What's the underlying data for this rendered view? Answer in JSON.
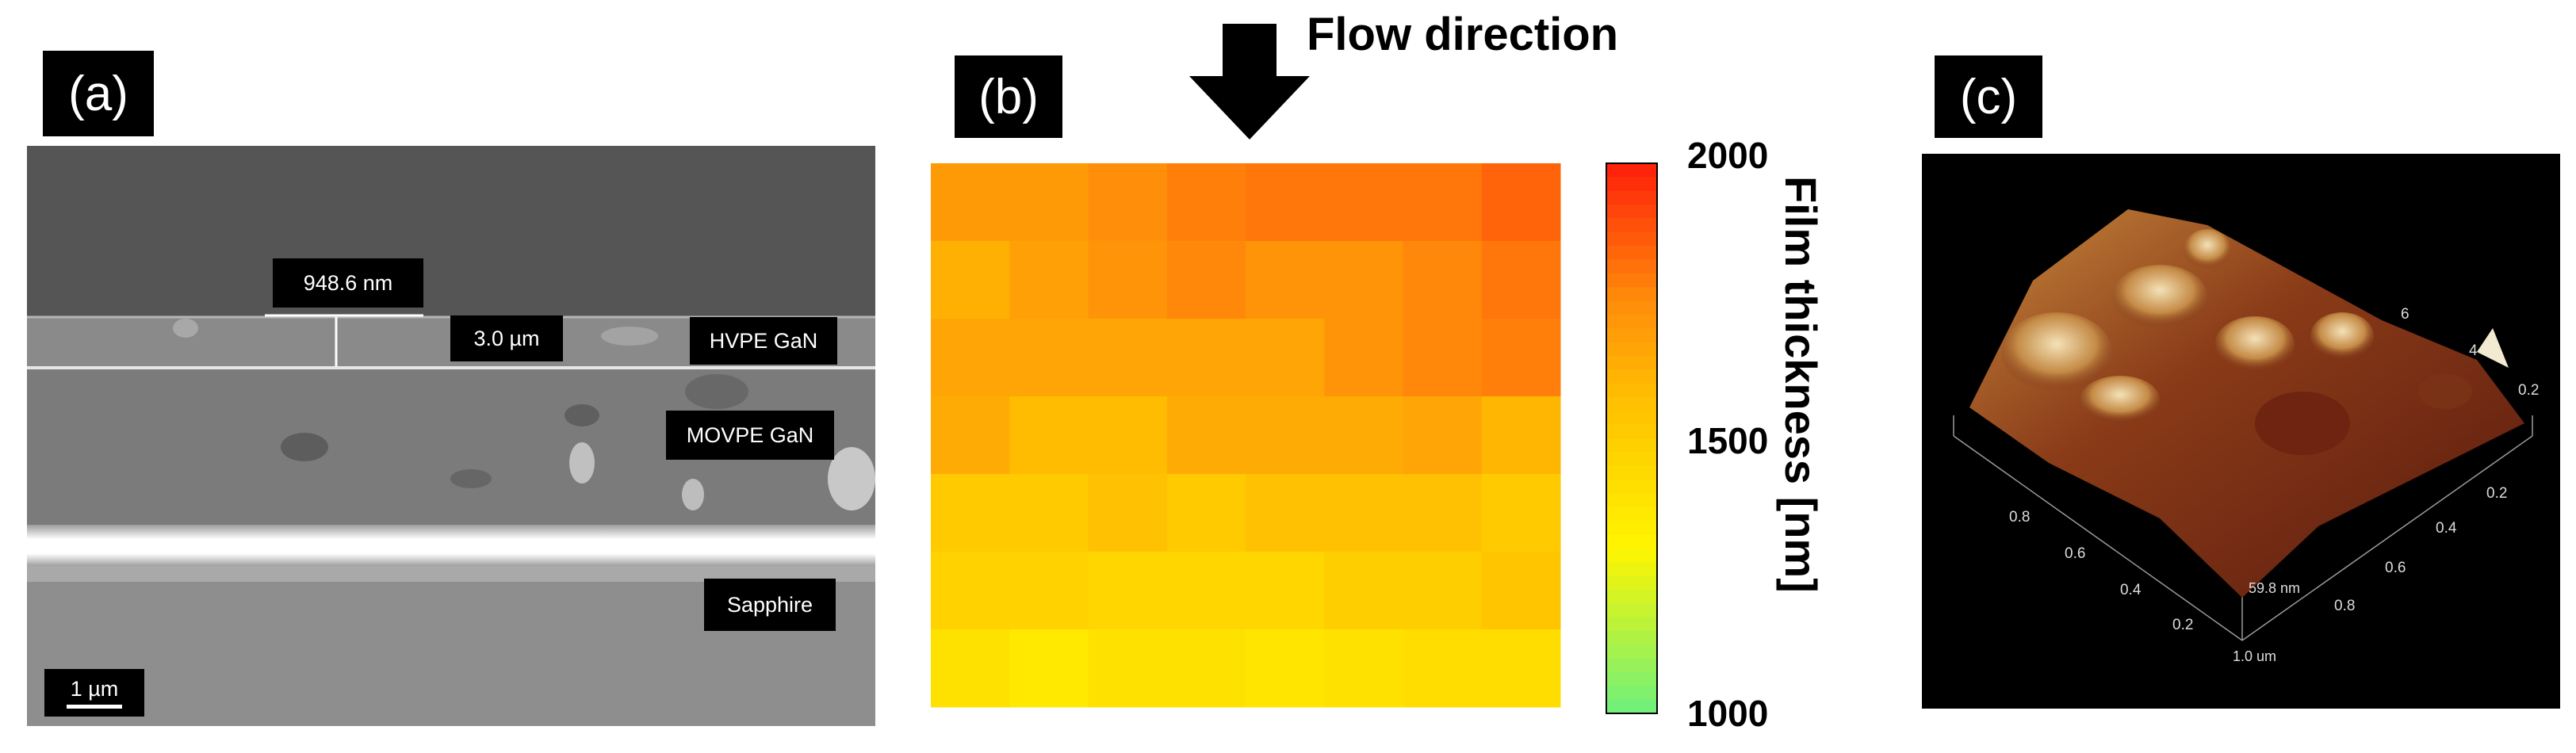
{
  "panels": {
    "a_label": "(a)",
    "b_label": "(b)",
    "c_label": "(c)"
  },
  "sem": {
    "measure_top": "948.6 nm",
    "measure_thickness": "3.0 µm",
    "layer_hvpe": "HVPE GaN",
    "layer_movpe": "MOVPE GaN",
    "layer_sapphire": "Sapphire",
    "scale_bar": "1 µm"
  },
  "heatmap": {
    "flow_label": "Flow direction",
    "colorbar_title": "Film thickness [nm]",
    "colors": {
      "high": "#ff2a0a",
      "mid": "#ffb200",
      "low": "#6df07c"
    }
  },
  "chart_data": {
    "type": "heatmap",
    "title": "",
    "colorbar_label": "Film thickness [nm]",
    "zlim": [
      1000,
      2000
    ],
    "colorbar_ticks": [
      "2000",
      "1500",
      "1000"
    ],
    "rows": 7,
    "cols": 8,
    "values": [
      [
        1700,
        1700,
        1740,
        1780,
        1800,
        1800,
        1800,
        1840
      ],
      [
        1620,
        1680,
        1720,
        1760,
        1720,
        1720,
        1760,
        1800
      ],
      [
        1660,
        1660,
        1660,
        1660,
        1660,
        1720,
        1760,
        1780
      ],
      [
        1640,
        1580,
        1580,
        1640,
        1640,
        1640,
        1660,
        1600
      ],
      [
        1520,
        1520,
        1560,
        1520,
        1560,
        1560,
        1560,
        1520
      ],
      [
        1480,
        1480,
        1460,
        1460,
        1460,
        1500,
        1500,
        1540
      ],
      [
        1400,
        1360,
        1400,
        1400,
        1380,
        1400,
        1420,
        1420
      ]
    ]
  },
  "afm": {
    "z_label": "59.8 nm",
    "corner_label": "1.0 um",
    "left_axis_ticks": [
      "0.8",
      "0.6",
      "0.4",
      "0.2"
    ],
    "right_axis_ticks": [
      "0.2",
      "0.4",
      "0.6",
      "0.8"
    ],
    "back_axis_ticks": [
      "6",
      "4",
      "0.2"
    ]
  }
}
